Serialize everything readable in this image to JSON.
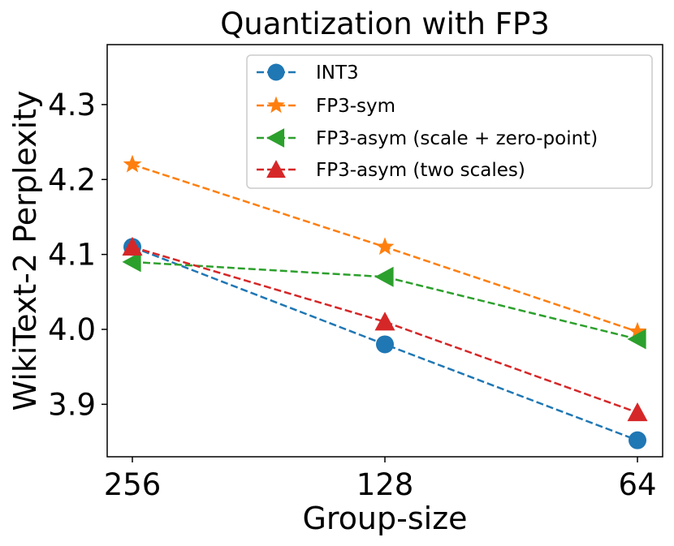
{
  "chart_data": {
    "type": "line",
    "title": "Quantization with FP3",
    "xlabel": "Group-size",
    "ylabel": "WikiText-2 Perplexity",
    "categories": [
      "256",
      "128",
      "64"
    ],
    "ylim": [
      3.83,
      4.38
    ],
    "yticks": [
      "3.9",
      "4.0",
      "4.1",
      "4.2",
      "4.3"
    ],
    "grid": false,
    "legend_position": "top-right",
    "series": [
      {
        "name": "INT3",
        "marker": "circle",
        "color": "#1f77b4",
        "values": [
          4.11,
          3.98,
          3.852
        ]
      },
      {
        "name": "FP3-sym",
        "marker": "star",
        "color": "#ff7f0e",
        "values": [
          4.22,
          4.11,
          3.997
        ]
      },
      {
        "name": "FP3-asym (scale + zero-point)",
        "marker": "triangle-left",
        "color": "#2ca02c",
        "values": [
          4.09,
          4.07,
          3.987
        ]
      },
      {
        "name": "FP3-asym (two scales)",
        "marker": "triangle-up",
        "color": "#d62728",
        "values": [
          4.11,
          4.01,
          3.889
        ]
      }
    ]
  }
}
